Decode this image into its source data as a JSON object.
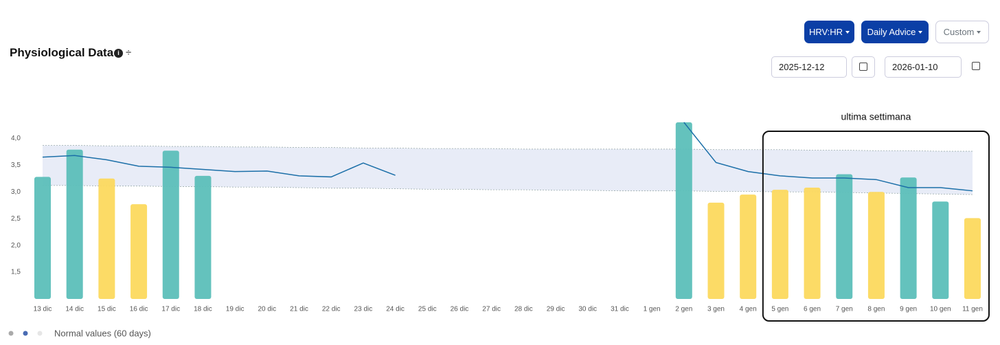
{
  "header": {
    "title": "Physiological Data",
    "buttons": [
      "HRV:HR",
      "Daily Advice",
      "Custom"
    ],
    "start_date": "2025-12-12",
    "end_date": "2026-01-10"
  },
  "chart_data": {
    "type": "bar",
    "categories": [
      "13 dic",
      "14 dic",
      "15 dic",
      "16 dic",
      "17 dic",
      "18 dic",
      "19 dic",
      "20 dic",
      "21 dic",
      "22 dic",
      "23 dic",
      "24 dic",
      "25 dic",
      "26 dic",
      "27 dic",
      "28 dic",
      "29 dic",
      "30 dic",
      "31 dic",
      "1 gen",
      "2 gen",
      "3 gen",
      "4 gen",
      "5 gen",
      "6 gen",
      "7 gen",
      "8 gen",
      "9 gen",
      "10 gen",
      "11 gen"
    ],
    "values": [
      3.28,
      3.79,
      3.25,
      2.77,
      3.77,
      3.3,
      null,
      null,
      null,
      null,
      null,
      null,
      null,
      null,
      null,
      null,
      null,
      null,
      null,
      null,
      4.3,
      2.8,
      2.95,
      3.04,
      3.08,
      3.33,
      3.0,
      3.27,
      2.82,
      2.51
    ],
    "colors": [
      "#5cbfb9",
      "#5cbfb9",
      "#fcd95e",
      "#fcd95e",
      "#5cbfb9",
      "#5cbfb9",
      null,
      null,
      null,
      null,
      null,
      null,
      null,
      null,
      null,
      null,
      null,
      null,
      null,
      null,
      "#5cbfb9",
      "#fcd95e",
      "#fcd95e",
      "#fcd95e",
      "#fcd95e",
      "#5cbfb9",
      "#fcd95e",
      "#5cbfb9",
      "#5cbfb9",
      "#fcd95e"
    ],
    "line": {
      "color": "#1b6fa8",
      "values": [
        3.65,
        3.68,
        3.6,
        3.48,
        3.46,
        3.42,
        3.38,
        3.39,
        3.3,
        3.28,
        3.54,
        3.31,
        null,
        null,
        null,
        null,
        null,
        null,
        null,
        null,
        4.3,
        3.55,
        3.38,
        3.3,
        3.26,
        3.26,
        3.23,
        3.08,
        3.08,
        3.02
      ]
    },
    "band": {
      "name": "Normal values (60 days)",
      "color": "#e8ecf7",
      "upper": [
        3.87,
        3.87,
        3.86,
        3.86,
        3.85,
        3.85,
        3.84,
        3.84,
        3.83,
        3.83,
        3.82,
        3.82,
        3.81,
        3.81,
        3.81,
        3.8,
        3.8,
        3.8,
        3.8,
        3.8,
        3.8,
        3.79,
        3.79,
        3.79,
        3.78,
        3.78,
        3.77,
        3.77,
        3.76,
        3.76
      ],
      "lower": [
        3.12,
        3.12,
        3.11,
        3.11,
        3.1,
        3.1,
        3.09,
        3.09,
        3.08,
        3.07,
        3.07,
        3.06,
        3.05,
        3.05,
        3.04,
        3.04,
        3.03,
        3.03,
        3.02,
        3.02,
        3.02,
        3.01,
        3.01,
        3.0,
        3.0,
        2.99,
        2.98,
        2.97,
        2.96,
        2.95
      ]
    },
    "annotation": "ultima settimana",
    "ylim": [
      1.0,
      4.3
    ],
    "yticks": [
      {
        "value": 1.5,
        "label": "1,5"
      },
      {
        "value": 2.0,
        "label": "2,0"
      },
      {
        "value": 2.5,
        "label": "2,5"
      },
      {
        "value": 3.0,
        "label": "3,0"
      },
      {
        "value": 3.5,
        "label": "3,5"
      },
      {
        "value": 4.0,
        "label": "4,0"
      }
    ]
  }
}
